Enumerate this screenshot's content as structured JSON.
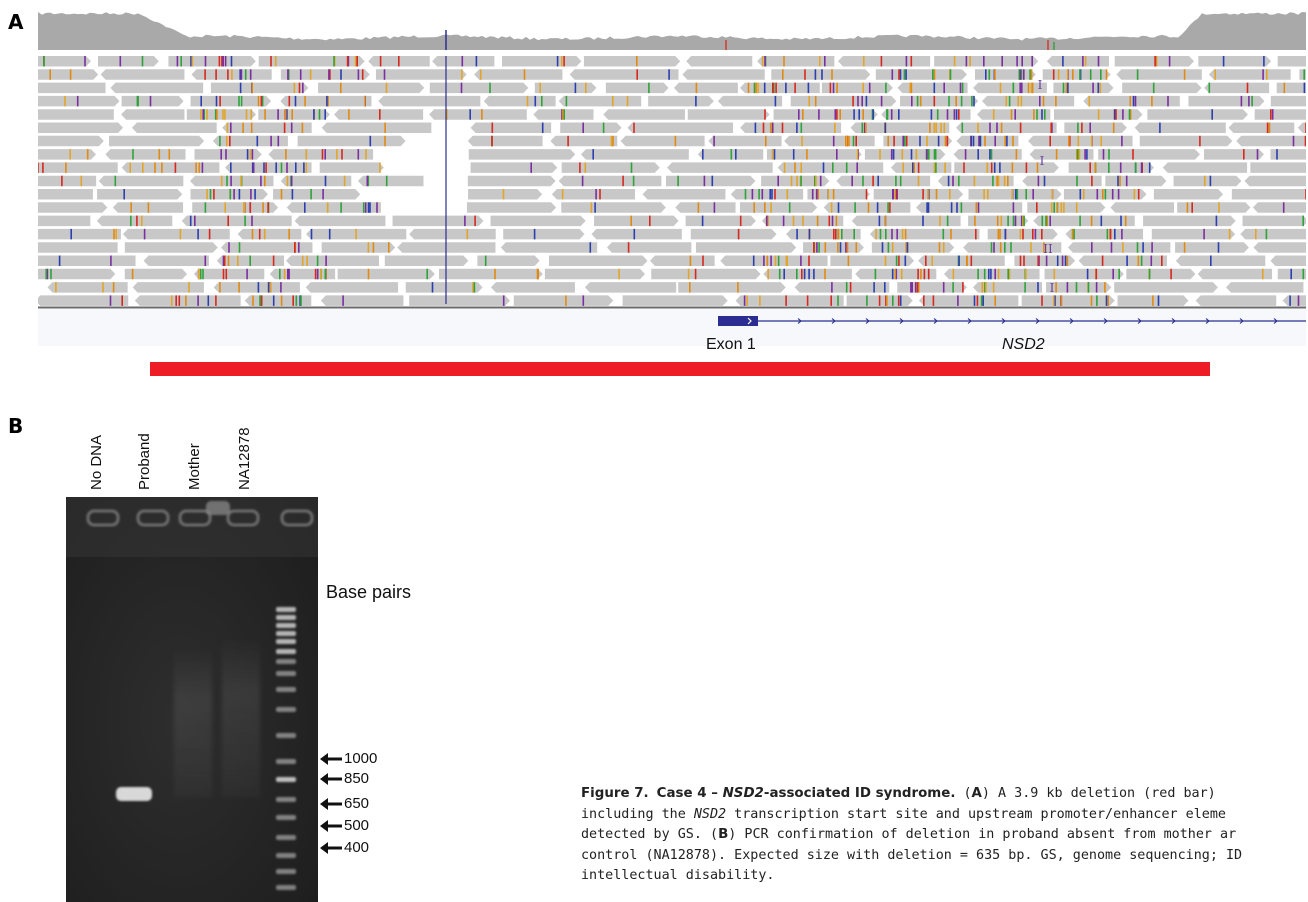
{
  "panel_labels": {
    "a": "A",
    "b": "B"
  },
  "igv": {
    "exon_label": "Exon 1",
    "gene_label": "NSD2",
    "insertion_markers": [
      "I",
      "I",
      "II",
      "I"
    ],
    "colors": {
      "coverage": "#a9a9a9",
      "read": "#c8c8c8",
      "gene": "#2b2d93",
      "deletion_bar": "#ee1c25"
    }
  },
  "gel": {
    "lanes": [
      "No DNA",
      "Proband",
      "Mother",
      "NA12878"
    ],
    "base_pairs_title": "Base pairs",
    "markers": [
      "1000",
      "850",
      "650",
      "500",
      "400"
    ]
  },
  "caption": {
    "figure_number": "Figure 7.",
    "title_pre": "Case 4 – ",
    "title_gene": "NSD2",
    "title_post": "-associated ID syndrome.",
    "a_open": " (",
    "a_letter": "A",
    "a_text": ") A 3.9 kb deletion (red bar)",
    "line2_pre": "including the ",
    "line2_gene": "NSD2",
    "line2_post": " transcription start site and upstream promoter/enhancer eleme",
    "line3_pre": "detected by GS. (",
    "b_letter": "B",
    "line3_post": ") PCR confirmation of deletion in proband absent from mother ar",
    "line4": "control (NA12878). Expected size with deletion = 635 bp. GS, genome sequencing; ID",
    "line5": "intellectual disability."
  }
}
